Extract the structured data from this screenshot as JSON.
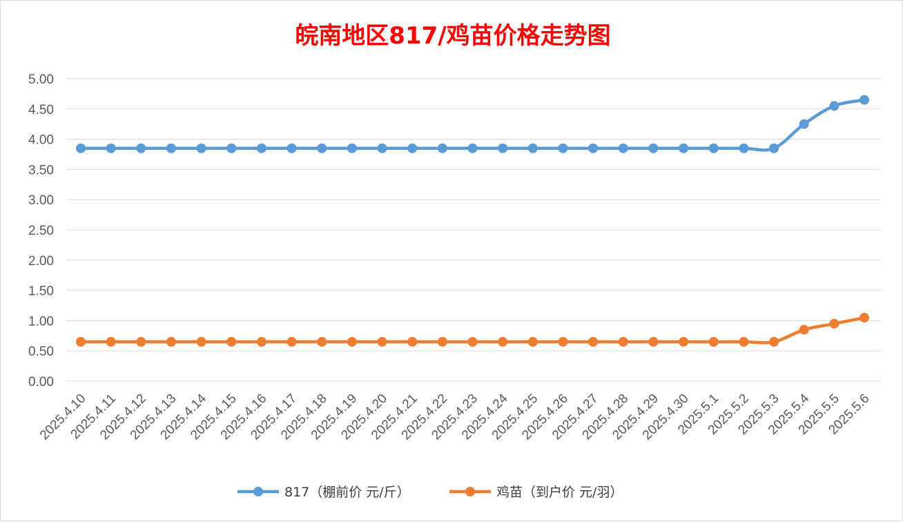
{
  "colors": {
    "title": "#ff0000",
    "series_817": "#5b9bd5",
    "series_chick": "#ed7d31",
    "grid": "#d9d9d9",
    "axis_text": "#595959"
  },
  "chart_data": {
    "type": "line",
    "title": "皖南地区817/鸡苗价格走势图",
    "xlabel": "",
    "ylabel": "",
    "ylim": [
      0,
      5
    ],
    "yticks": [
      "0.00",
      "0.50",
      "1.00",
      "1.50",
      "2.00",
      "2.50",
      "3.00",
      "3.50",
      "4.00",
      "4.50",
      "5.00"
    ],
    "grid": true,
    "legend_position": "bottom",
    "categories": [
      "2025.4.10",
      "2025.4.11",
      "2025.4.12",
      "2025.4.13",
      "2025.4.14",
      "2025.4.15",
      "2025.4.16",
      "2025.4.17",
      "2025.4.18",
      "2025.4.19",
      "2025.4.20",
      "2025.4.21",
      "2025.4.22",
      "2025.4.23",
      "2025.4.24",
      "2025.4.25",
      "2025.4.26",
      "2025.4.27",
      "2025.4.28",
      "2025.4.29",
      "2025.4.30",
      "2025.5.1",
      "2025.5.2",
      "2025.5.3",
      "2025.5.4",
      "2025.5.5",
      "2025.5.6"
    ],
    "series": [
      {
        "name": "817（棚前价 元/斤）",
        "color": "#5b9bd5",
        "values": [
          3.85,
          3.85,
          3.85,
          3.85,
          3.85,
          3.85,
          3.85,
          3.85,
          3.85,
          3.85,
          3.85,
          3.85,
          3.85,
          3.85,
          3.85,
          3.85,
          3.85,
          3.85,
          3.85,
          3.85,
          3.85,
          3.85,
          3.85,
          3.85,
          4.25,
          4.55,
          4.65
        ]
      },
      {
        "name": "鸡苗（到户价 元/羽）",
        "color": "#ed7d31",
        "values": [
          0.65,
          0.65,
          0.65,
          0.65,
          0.65,
          0.65,
          0.65,
          0.65,
          0.65,
          0.65,
          0.65,
          0.65,
          0.65,
          0.65,
          0.65,
          0.65,
          0.65,
          0.65,
          0.65,
          0.65,
          0.65,
          0.65,
          0.65,
          0.65,
          0.85,
          0.95,
          1.05
        ]
      }
    ]
  }
}
